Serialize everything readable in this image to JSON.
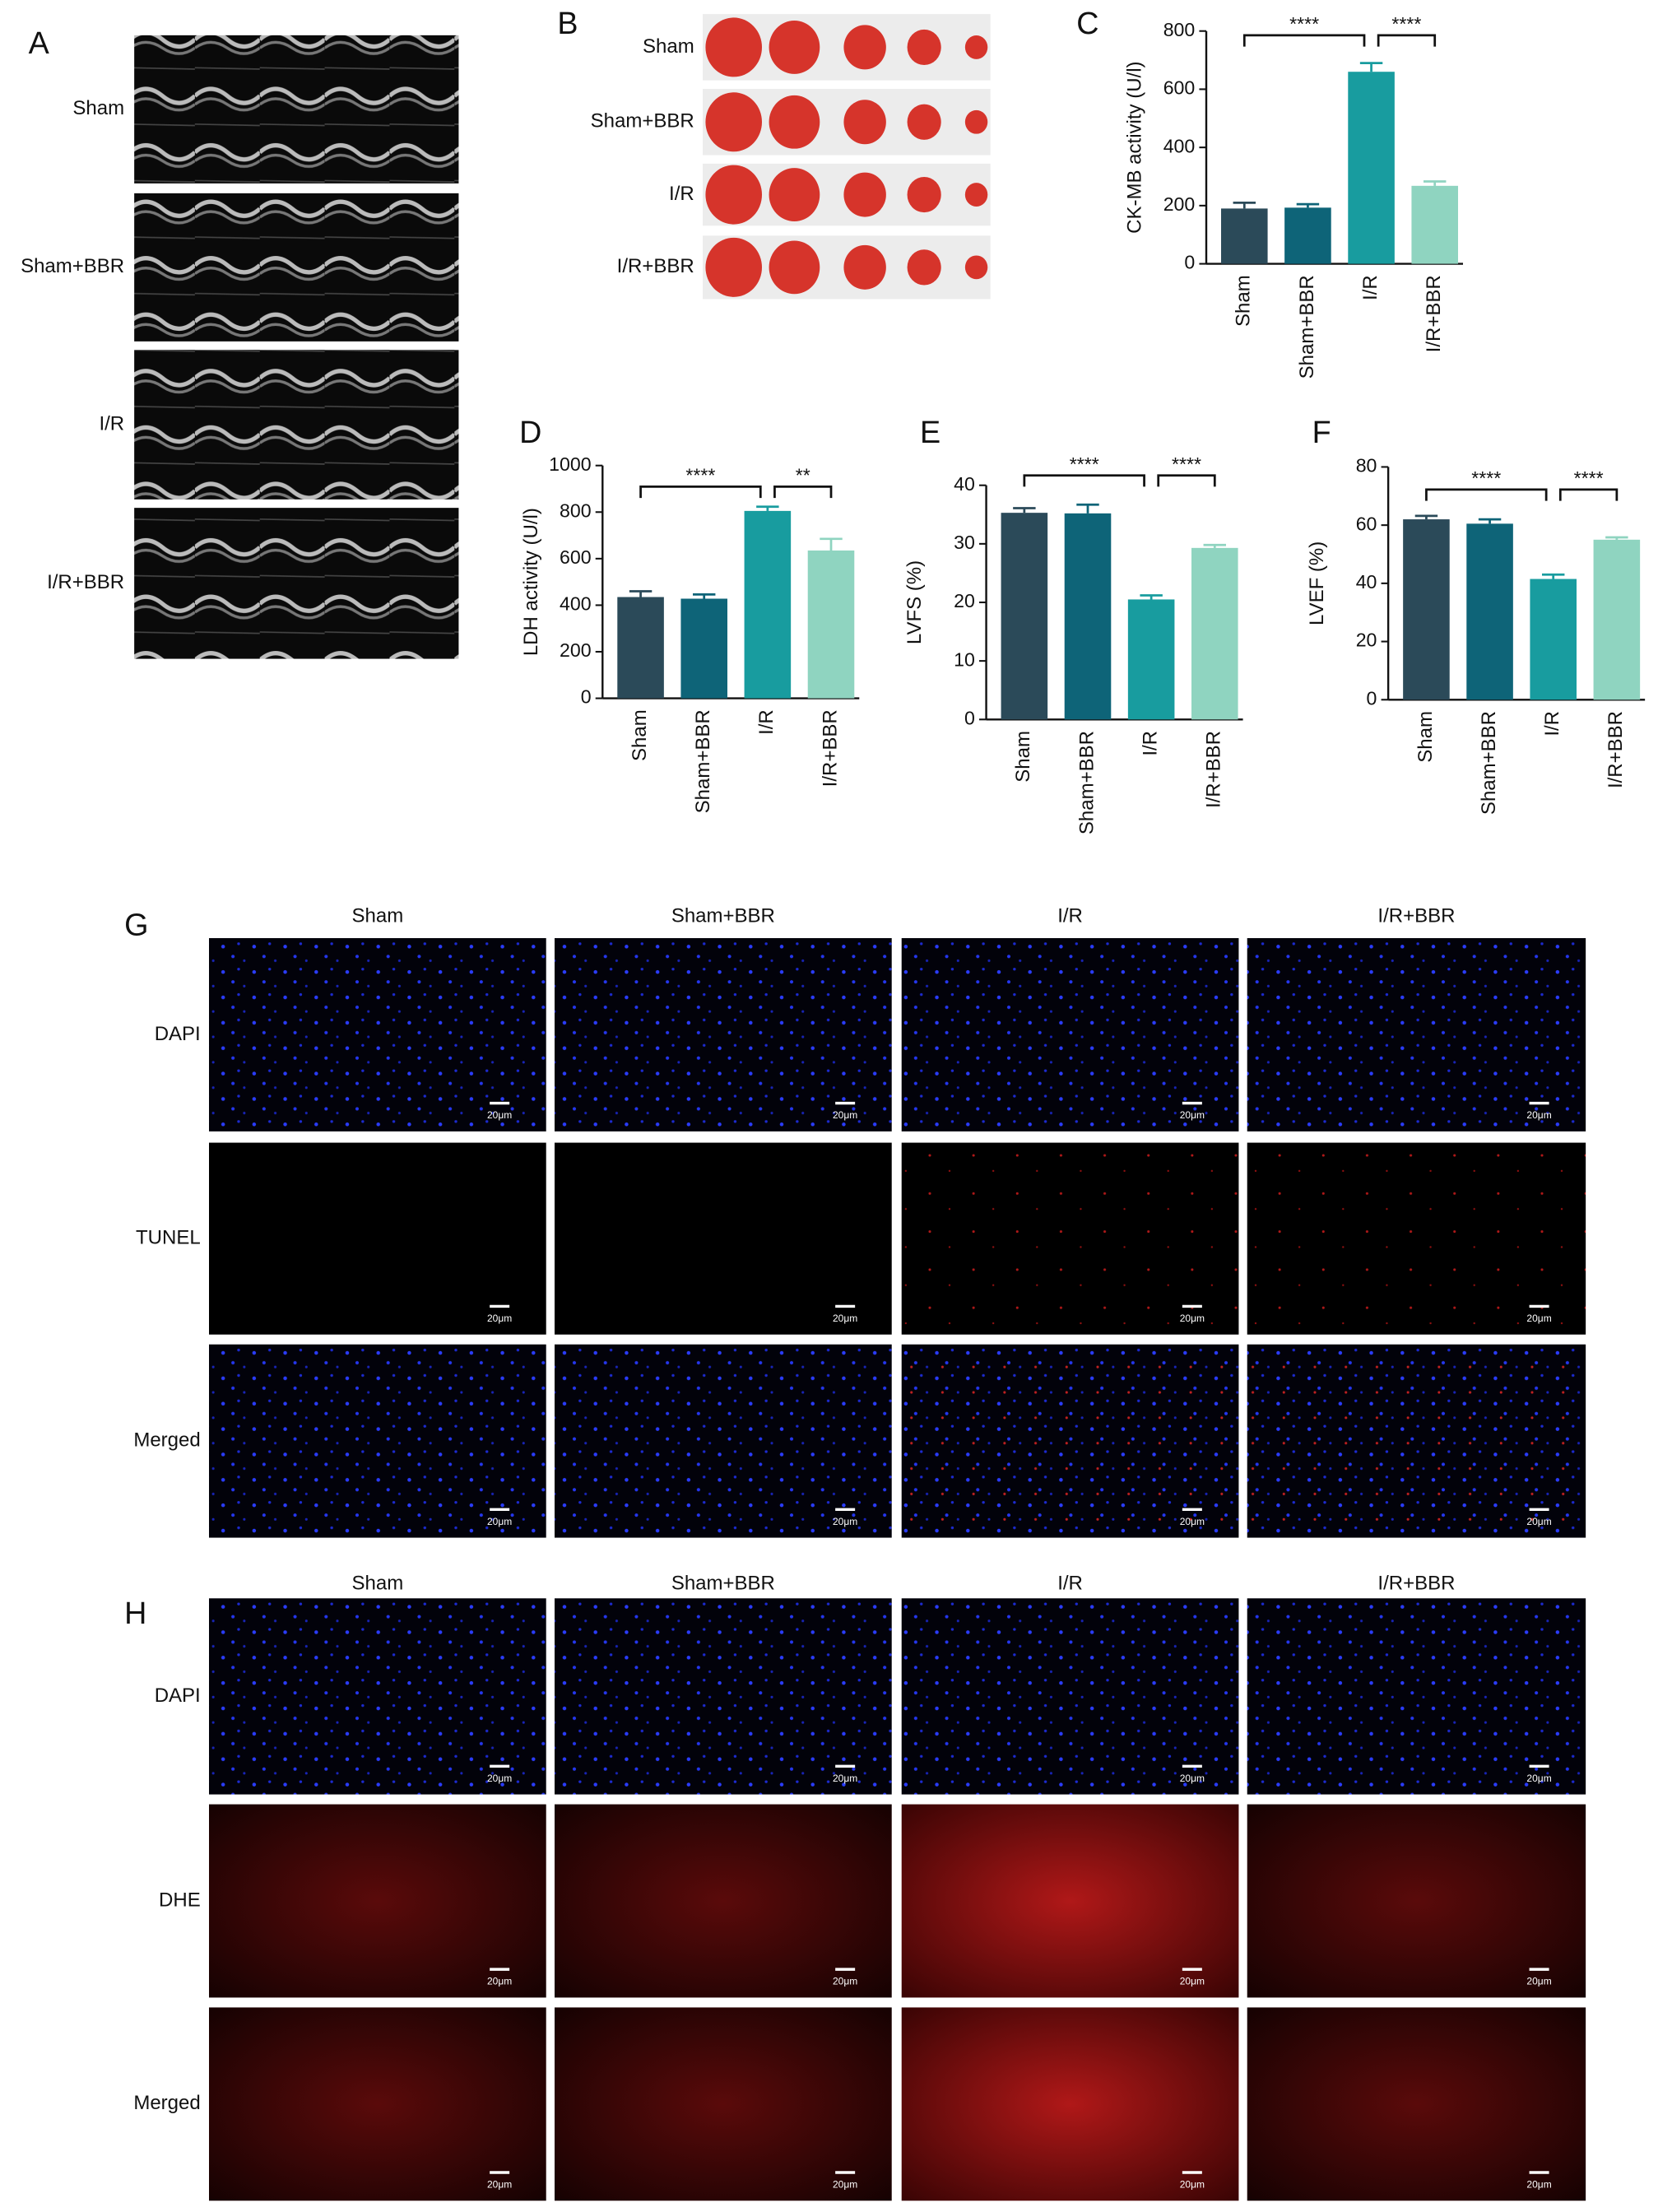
{
  "chart_data": [
    {
      "type": "bar",
      "ylabel": "CK-MB activity (U/l)",
      "categories": [
        "Sham",
        "Sham+BBR",
        "I/R",
        "I/R+BBR"
      ],
      "values": [
        190,
        193,
        660,
        268
      ],
      "errors": [
        20,
        12,
        30,
        15
      ],
      "colors": [
        "#2b4a59",
        "#0e6478",
        "#189c9f",
        "#8fd4c0"
      ],
      "ylim": [
        0,
        800
      ],
      "yticks": [
        0,
        200,
        400,
        600,
        800
      ],
      "annotations": [
        "****",
        "****"
      ]
    },
    {
      "type": "bar",
      "ylabel": "LDH activity (U/l)",
      "categories": [
        "Sham",
        "Sham+BBR",
        "I/R",
        "I/R+BBR"
      ],
      "values": [
        435,
        428,
        805,
        635
      ],
      "errors": [
        25,
        18,
        18,
        50
      ],
      "colors": [
        "#2b4a59",
        "#0e6478",
        "#189c9f",
        "#8fd4c0"
      ],
      "ylim": [
        0,
        1000
      ],
      "yticks": [
        0,
        200,
        400,
        600,
        800,
        1000
      ],
      "annotations": [
        "****",
        "**"
      ]
    },
    {
      "type": "bar",
      "ylabel": "LVFS (%)",
      "categories": [
        "Sham",
        "Sham+BBR",
        "I/R",
        "I/R+BBR"
      ],
      "values": [
        35.3,
        35.2,
        20.5,
        29.3
      ],
      "errors": [
        0.8,
        1.5,
        0.7,
        0.5
      ],
      "colors": [
        "#2b4a59",
        "#0e6478",
        "#189c9f",
        "#8fd4c0"
      ],
      "ylim": [
        0,
        40
      ],
      "yticks": [
        0,
        10,
        20,
        30,
        40
      ],
      "annotations": [
        "****",
        "****"
      ]
    },
    {
      "type": "bar",
      "ylabel": "LVEF (%)",
      "categories": [
        "Sham",
        "Sham+BBR",
        "I/R",
        "I/R+BBR"
      ],
      "values": [
        62,
        60.5,
        41.5,
        55
      ],
      "errors": [
        1.2,
        1.5,
        1.5,
        0.8
      ],
      "colors": [
        "#2b4a59",
        "#0e6478",
        "#189c9f",
        "#8fd4c0"
      ],
      "ylim": [
        0,
        80
      ],
      "yticks": [
        0,
        20,
        40,
        60,
        80
      ],
      "annotations": [
        "****",
        "****"
      ]
    }
  ],
  "panel_labels": [
    "A",
    "B",
    "C",
    "D",
    "E",
    "F",
    "G",
    "H"
  ],
  "panel_a": {
    "rows": [
      "Sham",
      "Sham+BBR",
      "I/R",
      "I/R+BBR"
    ]
  },
  "panel_b": {
    "rows": [
      "Sham",
      "Sham+BBR",
      "I/R",
      "I/R+BBR"
    ]
  },
  "panel_g": {
    "columns": [
      "Sham",
      "Sham+BBR",
      "I/R",
      "I/R+BBR"
    ],
    "rows": [
      "DAPI",
      "TUNEL",
      "Merged"
    ]
  },
  "panel_h": {
    "columns": [
      "Sham",
      "Sham+BBR",
      "I/R",
      "I/R+BBR"
    ],
    "rows": [
      "DAPI",
      "DHE",
      "Merged"
    ]
  },
  "scale_bar": "20μm"
}
